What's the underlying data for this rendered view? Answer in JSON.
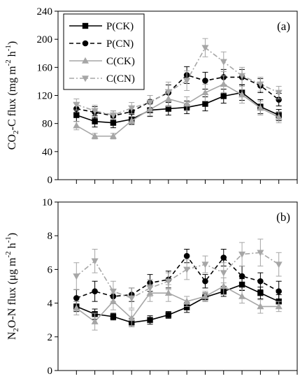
{
  "chart_data": [
    {
      "type": "line",
      "panel_label": "(a)",
      "ylabel": "CO2-C flux (mg m-2 h-1)",
      "ylabel_parts": {
        "a": "CO",
        "sub1": "2",
        "b": "-C flux (mg m",
        "sup1": "-2",
        "c": " h",
        "sup2": "-1",
        "d": ")"
      },
      "ylim": [
        0,
        240
      ],
      "yticks": [
        0,
        40,
        80,
        120,
        160,
        200,
        240
      ],
      "x": [
        1,
        2,
        3,
        4,
        5,
        6,
        7,
        8,
        9,
        10,
        11,
        12
      ],
      "xlim": [
        0,
        13
      ],
      "legend_position": "top-left",
      "series": [
        {
          "name": "P(CK)",
          "color": "#000000",
          "dash": "solid",
          "marker": "square",
          "values": [
            92,
            83,
            81,
            86,
            99,
            101,
            103,
            108,
            119,
            124,
            104,
            92
          ],
          "errors": [
            9,
            8,
            7,
            7,
            9,
            9,
            9,
            10,
            10,
            11,
            10,
            8
          ]
        },
        {
          "name": "P(CN)",
          "color": "#000000",
          "dash": "dash",
          "marker": "circle",
          "values": [
            101,
            96,
            91,
            97,
            111,
            124,
            149,
            141,
            146,
            146,
            134,
            114
          ],
          "errors": [
            8,
            8,
            7,
            8,
            9,
            11,
            12,
            12,
            11,
            11,
            10,
            9
          ]
        },
        {
          "name": "C(CK)",
          "color": "#a6a6a6",
          "dash": "solid",
          "marker": "triangle-up",
          "values": [
            77,
            62,
            62,
            84,
            100,
            115,
            108,
            124,
            136,
            121,
            102,
            89
          ],
          "errors": [
            6,
            4,
            4,
            6,
            9,
            11,
            10,
            12,
            12,
            12,
            10,
            8
          ]
        },
        {
          "name": "C(CN)",
          "color": "#a6a6a6",
          "dash": "dashdot",
          "marker": "triangle-down",
          "values": [
            107,
            98,
            92,
            102,
            110,
            125,
            141,
            188,
            168,
            148,
            136,
            124
          ],
          "errors": [
            8,
            8,
            6,
            8,
            10,
            14,
            14,
            13,
            14,
            12,
            10,
            9
          ]
        }
      ]
    },
    {
      "type": "line",
      "panel_label": "(b)",
      "ylabel": "N2O-N flux (μg m-2 h-1)",
      "ylabel_parts": {
        "a": "N",
        "sub1": "2",
        "b": "O-N flux (μg m",
        "sup1": "-2",
        "c": " h",
        "sup2": "-1",
        "d": ")"
      },
      "ylim": [
        0,
        10
      ],
      "yticks": [
        0,
        2,
        4,
        6,
        8,
        10
      ],
      "x": [
        1,
        2,
        3,
        4,
        5,
        6,
        7,
        8,
        9,
        10,
        11,
        12
      ],
      "xlim": [
        0,
        13
      ],
      "series": [
        {
          "name": "P(CK)",
          "color": "#000000",
          "dash": "solid",
          "marker": "square",
          "values": [
            3.8,
            3.35,
            3.2,
            2.85,
            3.0,
            3.3,
            3.75,
            4.35,
            4.7,
            5.1,
            4.6,
            4.1
          ],
          "errors": [
            0.3,
            0.3,
            0.2,
            0.25,
            0.25,
            0.2,
            0.3,
            0.25,
            0.3,
            0.35,
            0.35,
            0.4
          ]
        },
        {
          "name": "P(CN)",
          "color": "#000000",
          "dash": "dash",
          "marker": "circle",
          "values": [
            4.3,
            4.7,
            4.4,
            4.5,
            5.2,
            5.4,
            6.8,
            5.3,
            6.7,
            5.6,
            5.3,
            4.7
          ],
          "errors": [
            0.5,
            0.6,
            0.4,
            0.4,
            0.5,
            0.5,
            0.4,
            0.4,
            0.5,
            0.6,
            0.5,
            0.6
          ]
        },
        {
          "name": "C(CK)",
          "color": "#a6a6a6",
          "dash": "solid",
          "marker": "triangle-up",
          "values": [
            3.7,
            2.9,
            4.1,
            3.1,
            4.6,
            4.6,
            4.1,
            4.4,
            5.0,
            4.4,
            3.8,
            3.8
          ],
          "errors": [
            0.4,
            0.5,
            0.5,
            0.5,
            0.5,
            0.5,
            0.3,
            0.3,
            0.5,
            0.4,
            0.4,
            0.3
          ]
        },
        {
          "name": "C(CN)",
          "color": "#a6a6a6",
          "dash": "dashdot",
          "marker": "triangle-down",
          "values": [
            5.6,
            6.5,
            4.7,
            4.3,
            4.9,
            5.3,
            6.0,
            6.3,
            5.8,
            6.9,
            7.0,
            6.3
          ],
          "errors": [
            0.8,
            0.7,
            0.6,
            0.6,
            0.5,
            0.5,
            0.6,
            0.5,
            0.6,
            0.7,
            0.8,
            0.7
          ]
        }
      ]
    }
  ]
}
